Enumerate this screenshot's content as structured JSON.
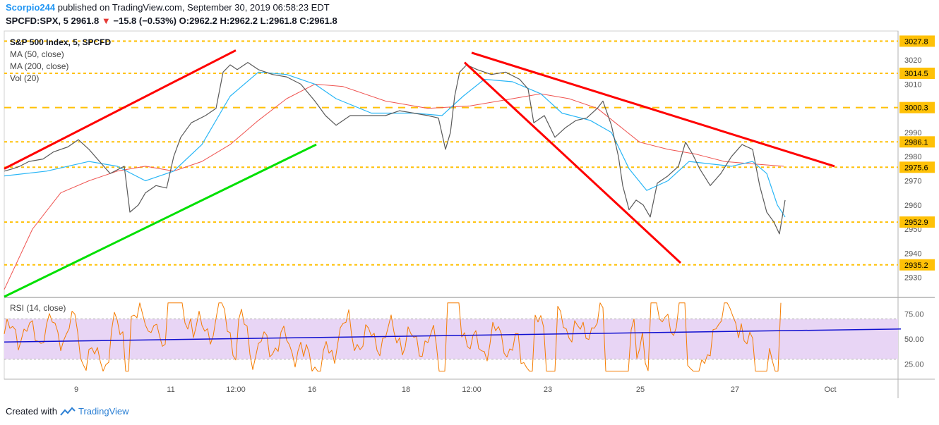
{
  "header": {
    "user": "Scorpio244",
    "published_text": "published on TradingView.com, September 30, 2019 06:58:23 EDT",
    "symbol": "SPCFD:SPX, 5",
    "last": "2961.8",
    "change": "−15.8 (−0.53%)",
    "open_label": "O:",
    "open": "2962.2",
    "high_label": "H:",
    "high": "2962.2",
    "low_label": "L:",
    "low": "2961.8",
    "close_label": "C:",
    "close": "2961.8"
  },
  "legend": {
    "title": "S&P 500 Index, 5, SPCFD",
    "ma50": "MA (50, close)",
    "ma200": "MA (200, close)",
    "vol": "Vol (20)"
  },
  "rsi_legend": "RSI (14, close)",
  "footer": {
    "created_with": "Created with",
    "brand": "TradingView"
  },
  "colors": {
    "price": "#5a5a5a",
    "ma50": "#29b6f6",
    "ma200": "#ef5350",
    "level": "#ffc107",
    "trend_red": "#ff0000",
    "trend_green": "#00e000",
    "rsi": "#f57c00",
    "rsi_trend": "#1010d0",
    "rsi_band": "#e8d5f5",
    "label_bg": "#ffc107"
  },
  "chart_data": [
    {
      "type": "line",
      "title": "S&P 500 Index, 5, SPCFD",
      "y_range": [
        2922,
        3032
      ],
      "y_ticks": [
        2930,
        2940,
        2950,
        2960,
        2970,
        2980,
        2990,
        3000,
        3010,
        3020
      ],
      "x_ticks": [
        "9",
        "11",
        "12:00",
        "16",
        "18",
        "12:00",
        "23",
        "25",
        "27",
        "Oct"
      ],
      "price_path": [
        [
          0,
          2974
        ],
        [
          12,
          2975
        ],
        [
          22,
          2976
        ],
        [
          35,
          2978
        ],
        [
          55,
          2979
        ],
        [
          70,
          2982
        ],
        [
          90,
          2984
        ],
        [
          105,
          2987
        ],
        [
          120,
          2983
        ],
        [
          135,
          2978
        ],
        [
          150,
          2973
        ],
        [
          170,
          2976
        ],
        [
          178,
          2957
        ],
        [
          190,
          2960
        ],
        [
          200,
          2965
        ],
        [
          215,
          2968
        ],
        [
          230,
          2967
        ],
        [
          240,
          2980
        ],
        [
          250,
          2988
        ],
        [
          265,
          2994
        ],
        [
          285,
          2997
        ],
        [
          300,
          3000
        ],
        [
          310,
          3015
        ],
        [
          320,
          3018
        ],
        [
          330,
          3016
        ],
        [
          345,
          3019
        ],
        [
          360,
          3016
        ],
        [
          380,
          3014
        ],
        [
          400,
          3013
        ],
        [
          420,
          3010
        ],
        [
          440,
          3003
        ],
        [
          455,
          2997
        ],
        [
          470,
          2993
        ],
        [
          490,
          2997
        ],
        [
          510,
          2997
        ],
        [
          540,
          2997
        ],
        [
          560,
          2999
        ],
        [
          580,
          2998
        ],
        [
          600,
          2997
        ],
        [
          615,
          2996
        ],
        [
          625,
          2983
        ],
        [
          632,
          2990
        ],
        [
          638,
          3005
        ],
        [
          645,
          3015
        ],
        [
          655,
          3018
        ],
        [
          670,
          3016
        ],
        [
          690,
          3014
        ],
        [
          710,
          3015
        ],
        [
          730,
          3012
        ],
        [
          742,
          3008
        ],
        [
          750,
          2994
        ],
        [
          765,
          2997
        ],
        [
          780,
          2988
        ],
        [
          795,
          2992
        ],
        [
          810,
          2995
        ],
        [
          825,
          2996
        ],
        [
          840,
          3000
        ],
        [
          848,
          3003
        ],
        [
          860,
          2993
        ],
        [
          870,
          2980
        ],
        [
          876,
          2968
        ],
        [
          885,
          2958
        ],
        [
          895,
          2962
        ],
        [
          905,
          2960
        ],
        [
          915,
          2955
        ],
        [
          925,
          2969
        ],
        [
          940,
          2972
        ],
        [
          955,
          2976
        ],
        [
          965,
          2986
        ],
        [
          975,
          2981
        ],
        [
          985,
          2975
        ],
        [
          1000,
          2968
        ],
        [
          1015,
          2973
        ],
        [
          1030,
          2980
        ],
        [
          1045,
          2985
        ],
        [
          1060,
          2983
        ],
        [
          1070,
          2968
        ],
        [
          1080,
          2957
        ],
        [
          1090,
          2953
        ],
        [
          1098,
          2948
        ],
        [
          1106,
          2962
        ]
      ],
      "ma50_path": [
        [
          0,
          2972
        ],
        [
          60,
          2974
        ],
        [
          120,
          2978
        ],
        [
          160,
          2976
        ],
        [
          200,
          2970
        ],
        [
          240,
          2974
        ],
        [
          280,
          2985
        ],
        [
          320,
          3005
        ],
        [
          360,
          3015
        ],
        [
          400,
          3014
        ],
        [
          440,
          3010
        ],
        [
          470,
          3004
        ],
        [
          520,
          2998
        ],
        [
          580,
          2998
        ],
        [
          620,
          2997
        ],
        [
          650,
          3005
        ],
        [
          680,
          3012
        ],
        [
          720,
          3011
        ],
        [
          760,
          3006
        ],
        [
          790,
          2998
        ],
        [
          830,
          2995
        ],
        [
          860,
          2990
        ],
        [
          885,
          2975
        ],
        [
          910,
          2966
        ],
        [
          940,
          2970
        ],
        [
          970,
          2978
        ],
        [
          1000,
          2977
        ],
        [
          1030,
          2976
        ],
        [
          1060,
          2978
        ],
        [
          1080,
          2973
        ],
        [
          1095,
          2960
        ],
        [
          1106,
          2955
        ]
      ],
      "ma200_path": [
        [
          0,
          2925
        ],
        [
          40,
          2950
        ],
        [
          80,
          2965
        ],
        [
          120,
          2970
        ],
        [
          160,
          2974
        ],
        [
          200,
          2976
        ],
        [
          240,
          2974
        ],
        [
          280,
          2978
        ],
        [
          320,
          2985
        ],
        [
          360,
          2995
        ],
        [
          400,
          3004
        ],
        [
          440,
          3010
        ],
        [
          480,
          3009
        ],
        [
          540,
          3003
        ],
        [
          600,
          3000
        ],
        [
          660,
          3001
        ],
        [
          720,
          3004
        ],
        [
          760,
          3006
        ],
        [
          800,
          3004
        ],
        [
          840,
          3000
        ],
        [
          870,
          2993
        ],
        [
          900,
          2986
        ],
        [
          940,
          2983
        ],
        [
          980,
          2981
        ],
        [
          1020,
          2978
        ],
        [
          1060,
          2977
        ],
        [
          1104,
          2976
        ]
      ],
      "levels": [
        3027.8,
        3014.5,
        3000.3,
        2986.1,
        2975.6,
        2952.9,
        2935.2
      ],
      "level_labels": [
        "3027.8",
        "3014.5",
        "3000.3",
        "2986.1",
        "2975.6",
        "2952.9",
        "2935.2"
      ],
      "trendlines": [
        {
          "color": "red",
          "points": [
            [
              0,
              2975
            ],
            [
              328,
              3024
            ]
          ]
        },
        {
          "color": "green",
          "points": [
            [
              0,
              2922
            ],
            [
              442,
              2985
            ]
          ]
        },
        {
          "color": "red",
          "points": [
            [
              662,
              3023
            ],
            [
              1176,
              2976
            ]
          ]
        },
        {
          "color": "red",
          "points": [
            [
              652,
              3019
            ],
            [
              958,
              2936
            ]
          ]
        }
      ]
    },
    {
      "type": "line",
      "title": "RSI (14, close)",
      "y_range": [
        10,
        90
      ],
      "y_ticks": [
        25,
        50,
        75
      ],
      "y_tick_labels": [
        "25.00",
        "50.00",
        "75.00"
      ],
      "band": [
        30,
        70
      ],
      "trendline": [
        [
          0,
          47
        ],
        [
          1270,
          60
        ]
      ]
    }
  ]
}
